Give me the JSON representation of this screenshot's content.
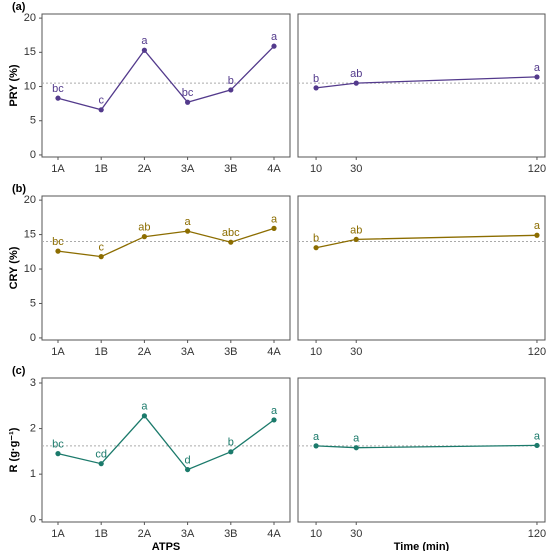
{
  "chart_data": [
    {
      "type": "line",
      "title": "(a)",
      "ylabel": "PRY (%)",
      "color": "#533a8c",
      "categories": [
        "1A",
        "1B",
        "2A",
        "3A",
        "3B",
        "4A"
      ],
      "values": [
        8.3,
        6.6,
        15.3,
        7.7,
        9.5,
        15.9
      ],
      "annotations": [
        "bc",
        "c",
        "a",
        "bc",
        "b",
        "a"
      ],
      "reference_line": 10.5,
      "ylim": [
        -0.3,
        20.6
      ],
      "yticks": [
        0,
        5,
        10,
        15,
        20
      ]
    },
    {
      "type": "line",
      "color": "#533a8c",
      "x": [
        10,
        30,
        120
      ],
      "values": [
        9.8,
        10.5,
        11.4
      ],
      "annotations": [
        "b",
        "ab",
        "a"
      ],
      "reference_line": 10.5,
      "xlim": [
        1,
        124
      ],
      "xticks": [
        10,
        30,
        120
      ],
      "ylim": [
        -0.3,
        20.6
      ]
    },
    {
      "type": "line",
      "title": "(b)",
      "ylabel": "CRY (%)",
      "color": "#8c6d00",
      "categories": [
        "1A",
        "1B",
        "2A",
        "3A",
        "3B",
        "4A"
      ],
      "values": [
        12.6,
        11.8,
        14.7,
        15.5,
        13.9,
        15.9
      ],
      "annotations": [
        "bc",
        "c",
        "ab",
        "a",
        "abc",
        "a"
      ],
      "reference_line": 14.0,
      "ylim": [
        -0.3,
        20.6
      ],
      "yticks": [
        0,
        5,
        10,
        15,
        20
      ]
    },
    {
      "type": "line",
      "color": "#8c6d00",
      "x": [
        10,
        30,
        120
      ],
      "values": [
        13.1,
        14.3,
        14.9
      ],
      "annotations": [
        "b",
        "ab",
        "a"
      ],
      "reference_line": 14.0,
      "xlim": [
        1,
        124
      ],
      "xticks": [
        10,
        30,
        120
      ],
      "ylim": [
        -0.3,
        20.6
      ]
    },
    {
      "type": "line",
      "title": "(c)",
      "ylabel": "R (g·g⁻¹)",
      "xlabel": "ATPS",
      "color": "#1b7a6b",
      "categories": [
        "1A",
        "1B",
        "2A",
        "3A",
        "3B",
        "4A"
      ],
      "values": [
        1.45,
        1.23,
        2.28,
        1.1,
        1.49,
        2.19
      ],
      "annotations": [
        "bc",
        "cd",
        "a",
        "d",
        "b",
        "a"
      ],
      "reference_line": 1.62,
      "ylim": [
        -0.05,
        3.11
      ],
      "yticks": [
        0,
        1,
        2,
        3
      ]
    },
    {
      "type": "line",
      "xlabel": "Time (min)",
      "color": "#1b7a6b",
      "x": [
        10,
        30,
        120
      ],
      "values": [
        1.62,
        1.58,
        1.63
      ],
      "annotations": [
        "a",
        "a",
        "a"
      ],
      "reference_line": 1.62,
      "xlim": [
        1,
        124
      ],
      "xticks": [
        10,
        30,
        120
      ],
      "ylim": [
        -0.05,
        3.11
      ]
    }
  ]
}
